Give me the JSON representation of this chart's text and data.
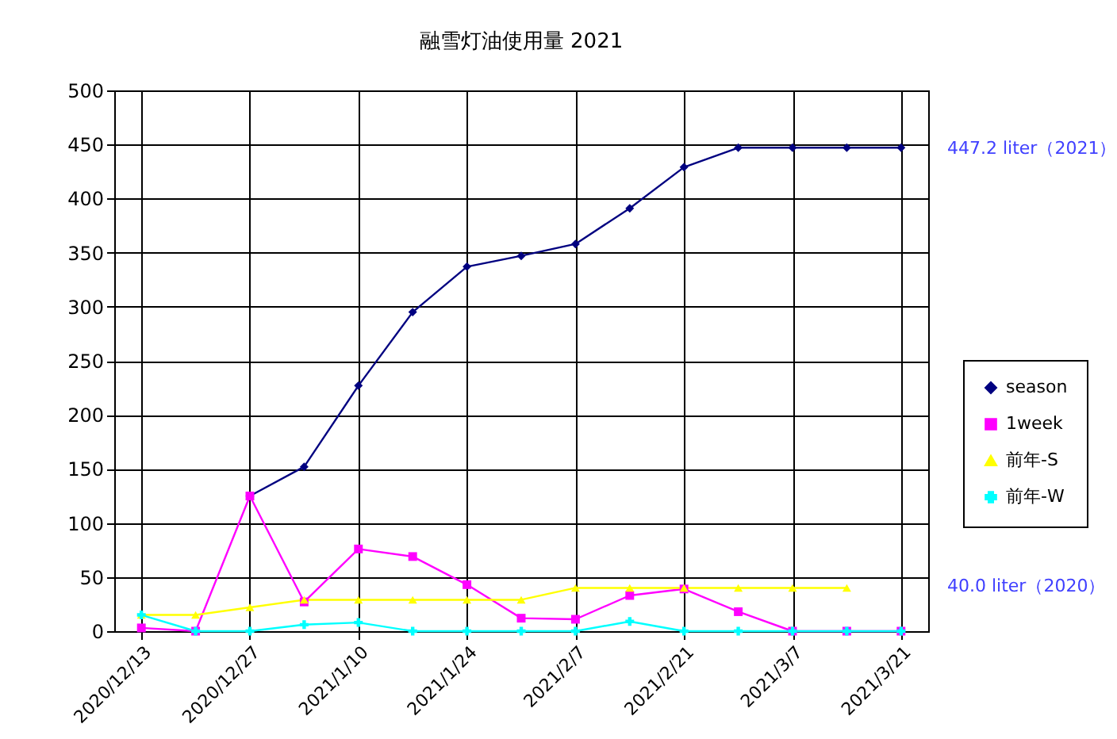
{
  "chart_data": {
    "type": "line",
    "title": "融雪灯油使用量 2021",
    "categories": [
      "2020/12/13",
      null,
      "2020/12/27",
      null,
      "2021/1/10",
      null,
      "2021/1/24",
      null,
      "2021/2/7",
      null,
      "2021/2/21",
      null,
      "2021/3/7",
      null,
      "2021/3/21"
    ],
    "series": [
      {
        "name": "season",
        "color": "#000080",
        "marker": "diamond",
        "values": [
          null,
          null,
          125,
          152,
          227,
          295,
          337,
          347,
          358,
          391,
          429,
          447,
          447,
          447,
          447
        ]
      },
      {
        "name": "1week",
        "color": "#ff00ff",
        "marker": "square",
        "values": [
          3,
          0,
          125,
          27,
          76,
          69,
          43,
          12,
          11,
          33,
          39,
          18,
          0,
          0,
          0
        ]
      },
      {
        "name": "前年-S",
        "color": "#ffff00",
        "marker": "triangle",
        "values": [
          15,
          15,
          22,
          29,
          29,
          29,
          29,
          29,
          40,
          40,
          40,
          40,
          40,
          40,
          null
        ]
      },
      {
        "name": "前年-W",
        "color": "#00ffff",
        "marker": "cross",
        "values": [
          15,
          0,
          0,
          6,
          8,
          0,
          0,
          0,
          0,
          9,
          0,
          0,
          0,
          0,
          0
        ]
      }
    ],
    "ylim": [
      0,
      500
    ],
    "yticks": [
      0,
      50,
      100,
      150,
      200,
      250,
      300,
      350,
      400,
      450,
      500
    ],
    "grid": true,
    "legend": "right",
    "annotations": [
      "447.2 liter（2021）",
      "40.0 liter（2020）"
    ]
  }
}
